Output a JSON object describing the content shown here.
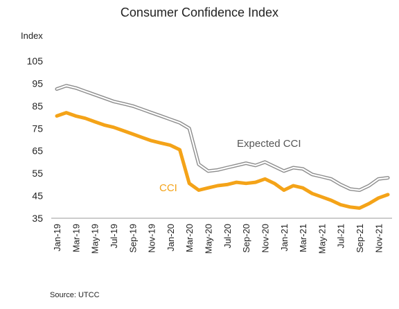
{
  "chart_data": {
    "type": "line",
    "title": "Consumer Confidence Index",
    "ylabel": "Index",
    "ylim": [
      35,
      105
    ],
    "yticks": [
      35,
      45,
      55,
      65,
      75,
      85,
      95,
      105
    ],
    "grid": false,
    "x": [
      "Jan-19",
      "Feb-19",
      "Mar-19",
      "Apr-19",
      "May-19",
      "Jun-19",
      "Jul-19",
      "Aug-19",
      "Sep-19",
      "Oct-19",
      "Nov-19",
      "Dec-19",
      "Jan-20",
      "Feb-20",
      "Mar-20",
      "Apr-20",
      "May-20",
      "Jun-20",
      "Jul-20",
      "Aug-20",
      "Sep-20",
      "Oct-20",
      "Nov-20",
      "Dec-20",
      "Jan-21",
      "Feb-21",
      "Mar-21",
      "Apr-21",
      "May-21",
      "Jun-21",
      "Jul-21",
      "Aug-21",
      "Sep-21",
      "Oct-21",
      "Nov-21",
      "Dec-21"
    ],
    "xtick_labels": [
      "Jan-19",
      "Mar-19",
      "May-19",
      "Jul-19",
      "Sep-19",
      "Nov-19",
      "Jan-20",
      "Mar-20",
      "May-20",
      "Jul-20",
      "Sep-20",
      "Nov-20",
      "Jan-21",
      "Mar-21",
      "May-21",
      "Jul-21",
      "Sep-21",
      "Nov-21"
    ],
    "series": [
      {
        "name": "Expected CCI",
        "color": "#8c8c8c",
        "values": [
          92.5,
          94,
          93,
          91.5,
          90,
          88.5,
          87,
          86,
          85,
          83.5,
          82,
          80.5,
          79,
          77.5,
          75,
          59,
          56,
          56.5,
          57.5,
          58.5,
          59.5,
          58.5,
          60,
          58,
          56,
          57.5,
          57,
          54.5,
          53.5,
          52.5,
          50,
          48,
          47.5,
          49.5,
          52.5,
          53
        ]
      },
      {
        "name": "CCI",
        "color": "#f4a318",
        "values": [
          80.5,
          82,
          80.5,
          79.5,
          78,
          76.5,
          75.5,
          74,
          72.5,
          71,
          69.5,
          68.5,
          67.5,
          65.5,
          50.5,
          47.5,
          48.5,
          49.5,
          50,
          51,
          50.5,
          51,
          52.5,
          50.5,
          47.5,
          49.5,
          48.5,
          46,
          44.5,
          43,
          41,
          40,
          39.5,
          41.5,
          44,
          45.5
        ]
      }
    ],
    "annotations": [
      "Expected CCI",
      "CCI"
    ],
    "source": "Source:  UTCC"
  }
}
